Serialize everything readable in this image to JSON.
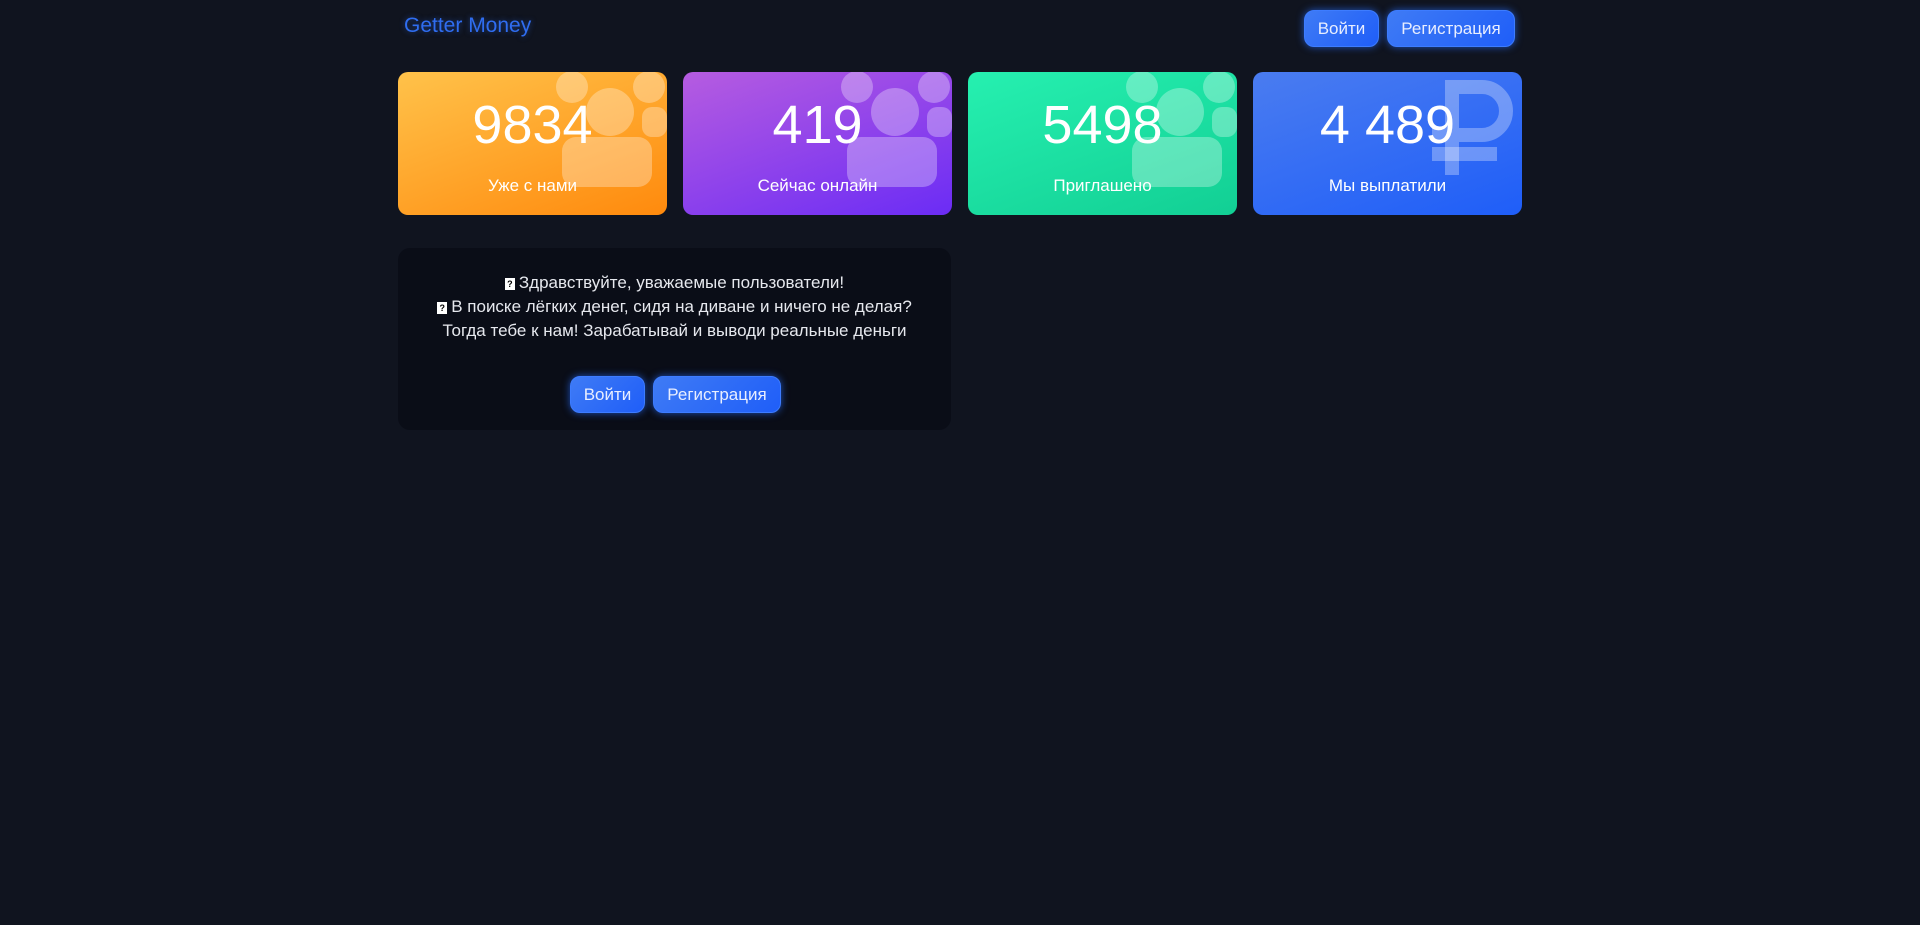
{
  "header": {
    "logo": "Getter Money",
    "login_label": "Войти",
    "register_label": "Регистрация"
  },
  "stats": [
    {
      "value": "9834",
      "label": "Уже с нами",
      "icon": "users-icon",
      "colors": [
        "#ffc24a",
        "#ff8a0d"
      ]
    },
    {
      "value": "419",
      "label": "Сейчас онлайн",
      "icon": "users-icon",
      "colors": [
        "#b65ce0",
        "#6b2cf5"
      ]
    },
    {
      "value": "5498",
      "label": "Приглашено",
      "icon": "users-icon",
      "colors": [
        "#26f0b0",
        "#12cf94"
      ]
    },
    {
      "value": "4 489",
      "label": "Мы выплатили",
      "icon": "ruble-icon",
      "colors": [
        "#4a7cf0",
        "#1f5ef8"
      ]
    }
  ],
  "welcome": {
    "lines": [
      "Здравствуйте, уважаемые пользователи!",
      "В поиске лёгких денег, сидя на диване и ничего не делая?",
      "Тогда тебе к нам! Зарабатывай и выводи реальные деньги"
    ],
    "missing_glyph": "?",
    "login_label": "Войти",
    "register_label": "Регистрация"
  }
}
